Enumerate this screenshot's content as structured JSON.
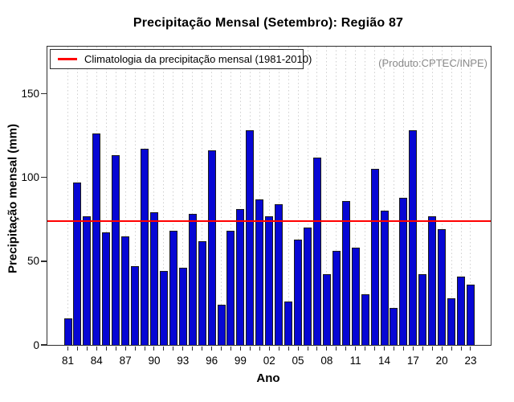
{
  "title": "Precipitação Mensal (Setembro): Região 87",
  "xlabel": "Ano",
  "ylabel": "Precipitação mensal (mm)",
  "watermark": "(Produto:CPTEC/INPE)",
  "legend": {
    "label": "Climatologia da precipitação mensal (1981-2010)"
  },
  "colors": {
    "bar_fill": "#0707d4",
    "bar_border": "#1a1a1a",
    "climatology_line": "#ff0000",
    "gridline": "#cfcfcf",
    "watermark_text": "#8a8a8a",
    "axis": "#2e2e2e"
  },
  "chart_data": {
    "type": "bar",
    "title": "Precipitação Mensal (Setembro): Região 87",
    "xlabel": "Ano",
    "ylabel": "Precipitação mensal (mm)",
    "years": [
      1981,
      1982,
      1983,
      1984,
      1985,
      1986,
      1987,
      1988,
      1989,
      1990,
      1991,
      1992,
      1993,
      1994,
      1995,
      1996,
      1997,
      1998,
      1999,
      2000,
      2001,
      2002,
      2003,
      2004,
      2005,
      2006,
      2007,
      2008,
      2009,
      2010,
      2011,
      2012,
      2013,
      2014,
      2015,
      2016,
      2017,
      2018,
      2019,
      2020,
      2021,
      2022,
      2023
    ],
    "values": [
      16,
      97,
      77,
      126,
      67,
      113,
      65,
      47,
      117,
      79,
      44,
      68,
      46,
      78,
      62,
      116,
      24,
      68,
      81,
      128,
      87,
      77,
      84,
      26,
      63,
      70,
      112,
      42,
      56,
      86,
      58,
      30,
      105,
      80,
      22,
      88,
      128,
      42,
      77,
      69,
      28,
      41,
      36
    ],
    "climatology_value": 74,
    "climatology_label": "Climatologia da precipitação mensal (1981-2010)",
    "ylim": [
      0,
      178
    ],
    "yticks": [
      0,
      50,
      100,
      150
    ],
    "x_tick_labels": [
      "81",
      "84",
      "87",
      "90",
      "93",
      "96",
      "99",
      "02",
      "05",
      "08",
      "11",
      "14",
      "17",
      "20",
      "23"
    ],
    "x_tick_step": 3,
    "grid": "vertical-dotted",
    "legend_position": "top-left"
  }
}
